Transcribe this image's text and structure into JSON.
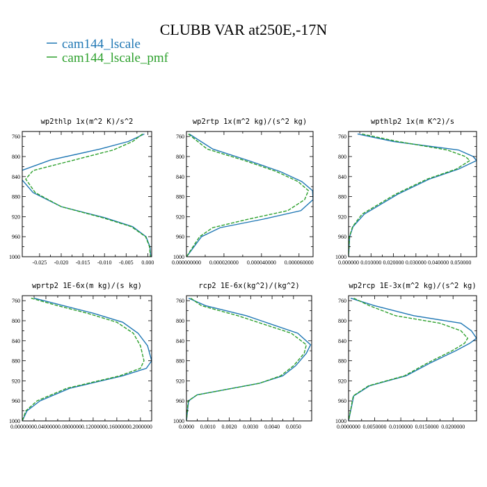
{
  "figure": {
    "title": "CLUBB VAR at250E,-17N",
    "legend": [
      {
        "label": "cam144_lscale",
        "color": "#1f77b4",
        "dash": "solid"
      },
      {
        "label": "cam144_lscale_pmf",
        "color": "#2ca02c",
        "dash": "dashed"
      }
    ]
  },
  "chart_data": [
    {
      "type": "line",
      "title": "wp2thlp  1x(m^2 K)/s^2",
      "ylim": [
        1000,
        750
      ],
      "yticks": [
        760,
        800,
        840,
        880,
        920,
        960,
        1000
      ],
      "xlim": [
        -0.029,
        0.0009
      ],
      "xticks": [
        -0.025,
        -0.02,
        -0.015,
        -0.01,
        -0.005,
        0.0
      ],
      "xtick_labels": [
        "-0.025",
        "-0.020",
        "-0.015",
        "-0.010",
        "-0.005",
        "0.000"
      ],
      "series": [
        {
          "name": "cam144_lscale",
          "x": [
            -0.0008,
            -0.0045,
            -0.011,
            -0.0225,
            -0.0292,
            -0.0292,
            -0.0265,
            -0.02,
            -0.01,
            -0.0035,
            -0.0004,
            0.0005,
            0.0007
          ],
          "y": [
            755,
            770,
            785,
            807,
            828,
            845,
            872,
            900,
            922,
            940,
            960,
            980,
            1000
          ]
        },
        {
          "name": "cam144_lscale_pmf",
          "x": [
            -0.0012,
            -0.0035,
            -0.008,
            -0.0175,
            -0.0265,
            -0.0282,
            -0.026,
            -0.02,
            -0.0105,
            -0.0038,
            -0.0005,
            0.0004,
            0.0006
          ],
          "y": [
            755,
            770,
            787,
            808,
            828,
            845,
            872,
            900,
            922,
            940,
            960,
            980,
            1000
          ]
        }
      ]
    },
    {
      "type": "line",
      "title": "wp2rtp  1x(m^2 kg)/(s^2 kg)",
      "ylim": [
        1000,
        750
      ],
      "yticks": [
        760,
        800,
        840,
        880,
        920,
        960,
        1000
      ],
      "xlim": [
        0,
        6.75e-05
      ],
      "xticks": [
        0,
        2e-05,
        4e-05,
        6e-05
      ],
      "xtick_labels": [
        "0.000000000",
        "0.000020000",
        "0.000040000",
        "0.000060000"
      ],
      "series": [
        {
          "name": "cam144_lscale",
          "x": [
            1.5e-06,
            1.4e-05,
            3.3e-05,
            5e-05,
            6.15e-05,
            6.72e-05,
            6.75e-05,
            6.1e-05,
            4.1e-05,
            1.8e-05,
            8e-06,
            1e-07
          ],
          "y": [
            755,
            785,
            808,
            830,
            850,
            868,
            886,
            908,
            925,
            942,
            960,
            1000
          ]
        },
        {
          "name": "cam144_lscale_pmf",
          "x": [
            1e-06,
            1.1e-05,
            3.1e-05,
            4.8e-05,
            5.95e-05,
            6.5e-05,
            6.3e-05,
            5.4e-05,
            3.3e-05,
            1.4e-05,
            7e-06,
            0.0
          ],
          "y": [
            755,
            785,
            808,
            830,
            850,
            868,
            886,
            908,
            925,
            942,
            960,
            1000
          ]
        }
      ]
    },
    {
      "type": "line",
      "title": "wpthlp2  1x(m K^2)/s",
      "ylim": [
        1000,
        750
      ],
      "yticks": [
        760,
        800,
        840,
        880,
        920,
        960,
        1000
      ],
      "xlim": [
        0,
        0.057
      ],
      "xticks": [
        0,
        0.01,
        0.02,
        0.03,
        0.04,
        0.05
      ],
      "xtick_labels": [
        "0.000000",
        "0.010000",
        "0.020000",
        "0.030000",
        "0.040000",
        "0.050000"
      ],
      "series": [
        {
          "name": "cam144_lscale",
          "x": [
            0.004,
            0.02,
            0.049,
            0.0555,
            0.057,
            0.049,
            0.036,
            0.022,
            0.007,
            0.002,
            0.0005,
            0.0
          ],
          "y": [
            755,
            770,
            787,
            800,
            808,
            825,
            845,
            875,
            915,
            940,
            960,
            1000
          ]
        },
        {
          "name": "cam144_lscale_pmf",
          "x": [
            0.006,
            0.022,
            0.044,
            0.052,
            0.054,
            0.048,
            0.035,
            0.021,
            0.006,
            0.0018,
            0.0004,
            0.0
          ],
          "y": [
            755,
            770,
            787,
            800,
            808,
            825,
            845,
            875,
            915,
            940,
            960,
            1000
          ]
        }
      ]
    },
    {
      "type": "line",
      "title": "wprtp2  1E-6x(m kg)/(s kg)",
      "ylim": [
        1000,
        750
      ],
      "yticks": [
        760,
        800,
        840,
        880,
        920,
        960,
        1000
      ],
      "xlim": [
        0,
        0.219
      ],
      "xticks": [
        0,
        0.04,
        0.08,
        0.12,
        0.16,
        0.2
      ],
      "xtick_labels": [
        "0.0000000",
        "0.0400000",
        "0.0800000",
        "0.1200000",
        "0.1600000",
        "0.2000000"
      ],
      "series": [
        {
          "name": "cam144_lscale",
          "x": [
            0.02,
            0.07,
            0.12,
            0.17,
            0.196,
            0.212,
            0.219,
            0.21,
            0.17,
            0.08,
            0.03,
            0.008,
            0.0
          ],
          "y": [
            755,
            770,
            785,
            803,
            825,
            850,
            880,
            895,
            910,
            935,
            960,
            980,
            1000
          ]
        },
        {
          "name": "cam144_lscale_pmf",
          "x": [
            0.015,
            0.06,
            0.11,
            0.16,
            0.188,
            0.2,
            0.206,
            0.2,
            0.165,
            0.075,
            0.025,
            0.006,
            0.0
          ],
          "y": [
            755,
            770,
            785,
            803,
            825,
            850,
            880,
            895,
            910,
            935,
            960,
            980,
            1000
          ]
        }
      ]
    },
    {
      "type": "line",
      "title": "rcp2  1E-6x(kg^2)/(kg^2)",
      "ylim": [
        1000,
        750
      ],
      "yticks": [
        760,
        800,
        840,
        880,
        920,
        960,
        1000
      ],
      "xlim": [
        0,
        0.00585
      ],
      "xticks": [
        0,
        0.001,
        0.002,
        0.003,
        0.004,
        0.005
      ],
      "xtick_labels": [
        "0.0000",
        "0.0010",
        "0.0020",
        "0.0030",
        "0.0040",
        "0.0050"
      ],
      "series": [
        {
          "name": "cam144_lscale",
          "x": [
            0.0001,
            0.0009,
            0.0028,
            0.0052,
            0.0058,
            0.0056,
            0.0051,
            0.0045,
            0.0034,
            0.0005,
            0.0001,
            0.0
          ],
          "y": [
            755,
            770,
            790,
            825,
            848,
            865,
            890,
            910,
            925,
            948,
            960,
            1000
          ]
        },
        {
          "name": "cam144_lscale_pmf",
          "x": [
            0.0002,
            0.0007,
            0.0024,
            0.0049,
            0.0056,
            0.0055,
            0.005,
            0.0044,
            0.0034,
            0.0005,
            8e-05,
            0.0
          ],
          "y": [
            755,
            770,
            790,
            825,
            848,
            865,
            890,
            910,
            925,
            948,
            960,
            1000
          ]
        }
      ]
    },
    {
      "type": "line",
      "title": "wp2rcp  1E-3x(m^2 kg)/(s^2 kg)",
      "ylim": [
        1000,
        750
      ],
      "yticks": [
        760,
        800,
        840,
        880,
        920,
        960,
        1000
      ],
      "xlim": [
        0,
        0.0245
      ],
      "xticks": [
        0,
        0.005,
        0.01,
        0.015,
        0.02
      ],
      "xtick_labels": [
        "0.0000000",
        "0.0050000",
        "0.0100000",
        "0.0150000",
        "0.0200000"
      ],
      "series": [
        {
          "name": "cam144_lscale",
          "x": [
            0.0004,
            0.005,
            0.0125,
            0.0215,
            0.0235,
            0.0245,
            0.0232,
            0.0205,
            0.0155,
            0.011,
            0.004,
            0.001,
            0.0
          ],
          "y": [
            755,
            770,
            790,
            805,
            820,
            835,
            845,
            860,
            885,
            910,
            930,
            950,
            1000
          ]
        },
        {
          "name": "cam144_lscale_pmf",
          "x": [
            0.001,
            0.004,
            0.009,
            0.0175,
            0.0215,
            0.0228,
            0.0222,
            0.0198,
            0.015,
            0.0107,
            0.0038,
            0.0009,
            0.0
          ],
          "y": [
            755,
            770,
            790,
            805,
            820,
            835,
            845,
            860,
            885,
            910,
            930,
            950,
            1000
          ]
        }
      ]
    }
  ]
}
